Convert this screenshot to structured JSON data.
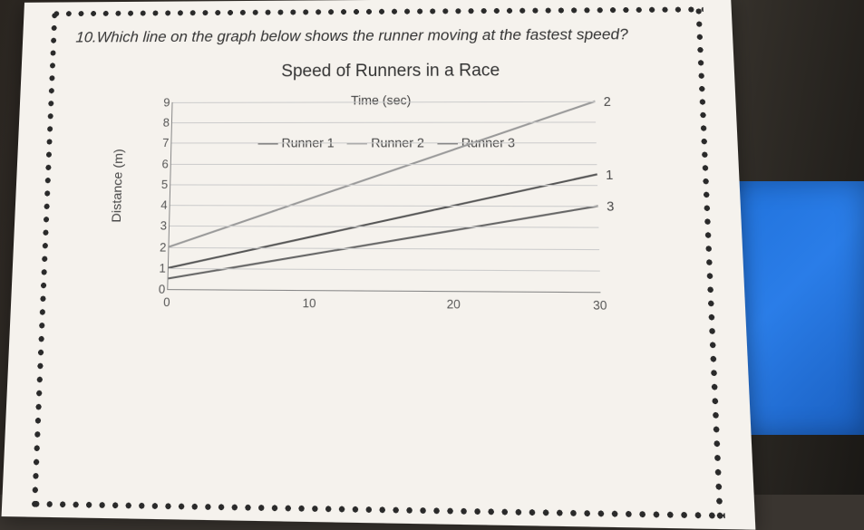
{
  "question": "10.Which line on the graph below shows the runner moving at the fastest speed?",
  "chart": {
    "type": "line",
    "title": "Speed of Runners in a Race",
    "xlabel": "Time (sec)",
    "ylabel": "Distance (m)",
    "xlim": [
      0,
      30
    ],
    "ylim": [
      0,
      9
    ],
    "xticks": [
      0,
      10,
      20,
      30
    ],
    "yticks": [
      0,
      1,
      2,
      3,
      4,
      5,
      6,
      7,
      8,
      9
    ],
    "grid_color": "#cccccc",
    "axis_color": "#888888",
    "background_color": "#f5f2ed",
    "title_fontsize": 19,
    "label_fontsize": 14,
    "tick_fontsize": 13,
    "series": [
      {
        "name": "Runner 1",
        "end_label": "1",
        "color": "#555555",
        "width": 2,
        "points": [
          [
            0,
            1
          ],
          [
            30,
            5.5
          ]
        ]
      },
      {
        "name": "Runner 2",
        "end_label": "2",
        "color": "#999999",
        "width": 2,
        "points": [
          [
            0,
            2
          ],
          [
            30,
            9
          ]
        ]
      },
      {
        "name": "Runner 3",
        "end_label": "3",
        "color": "#666666",
        "width": 2,
        "points": [
          [
            0,
            0.5
          ],
          [
            30,
            4
          ]
        ]
      }
    ],
    "legend": [
      "Runner 1",
      "Runner 2",
      "Runner 3"
    ]
  }
}
